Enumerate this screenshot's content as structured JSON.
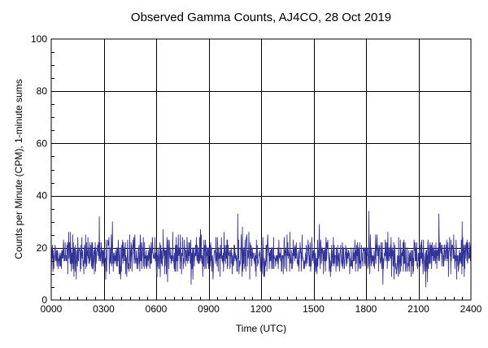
{
  "chart_data": {
    "type": "line",
    "title": "Observed Gamma Counts, AJ4CO, 28 Oct 2019",
    "xlabel": "Time (UTC)",
    "ylabel": "Counts per Minute (CPM), 1-minute sums",
    "xlim": [
      0,
      1440
    ],
    "ylim": [
      0,
      100
    ],
    "x_tick_labels": [
      "0000",
      "0300",
      "0600",
      "0900",
      "1200",
      "1500",
      "1800",
      "2100",
      "2400"
    ],
    "y_tick_labels": [
      "0",
      "20",
      "40",
      "60",
      "80",
      "100"
    ],
    "grid": true,
    "legend": "none",
    "series": [
      {
        "x_start": 0,
        "x_step": 1,
        "sample_count": 1440,
        "mean": 17,
        "min": 5,
        "max": 34,
        "values": []
      }
    ],
    "colors": {
      "series": "#33339a",
      "grid": "#000000",
      "background": "#ffffff"
    }
  }
}
